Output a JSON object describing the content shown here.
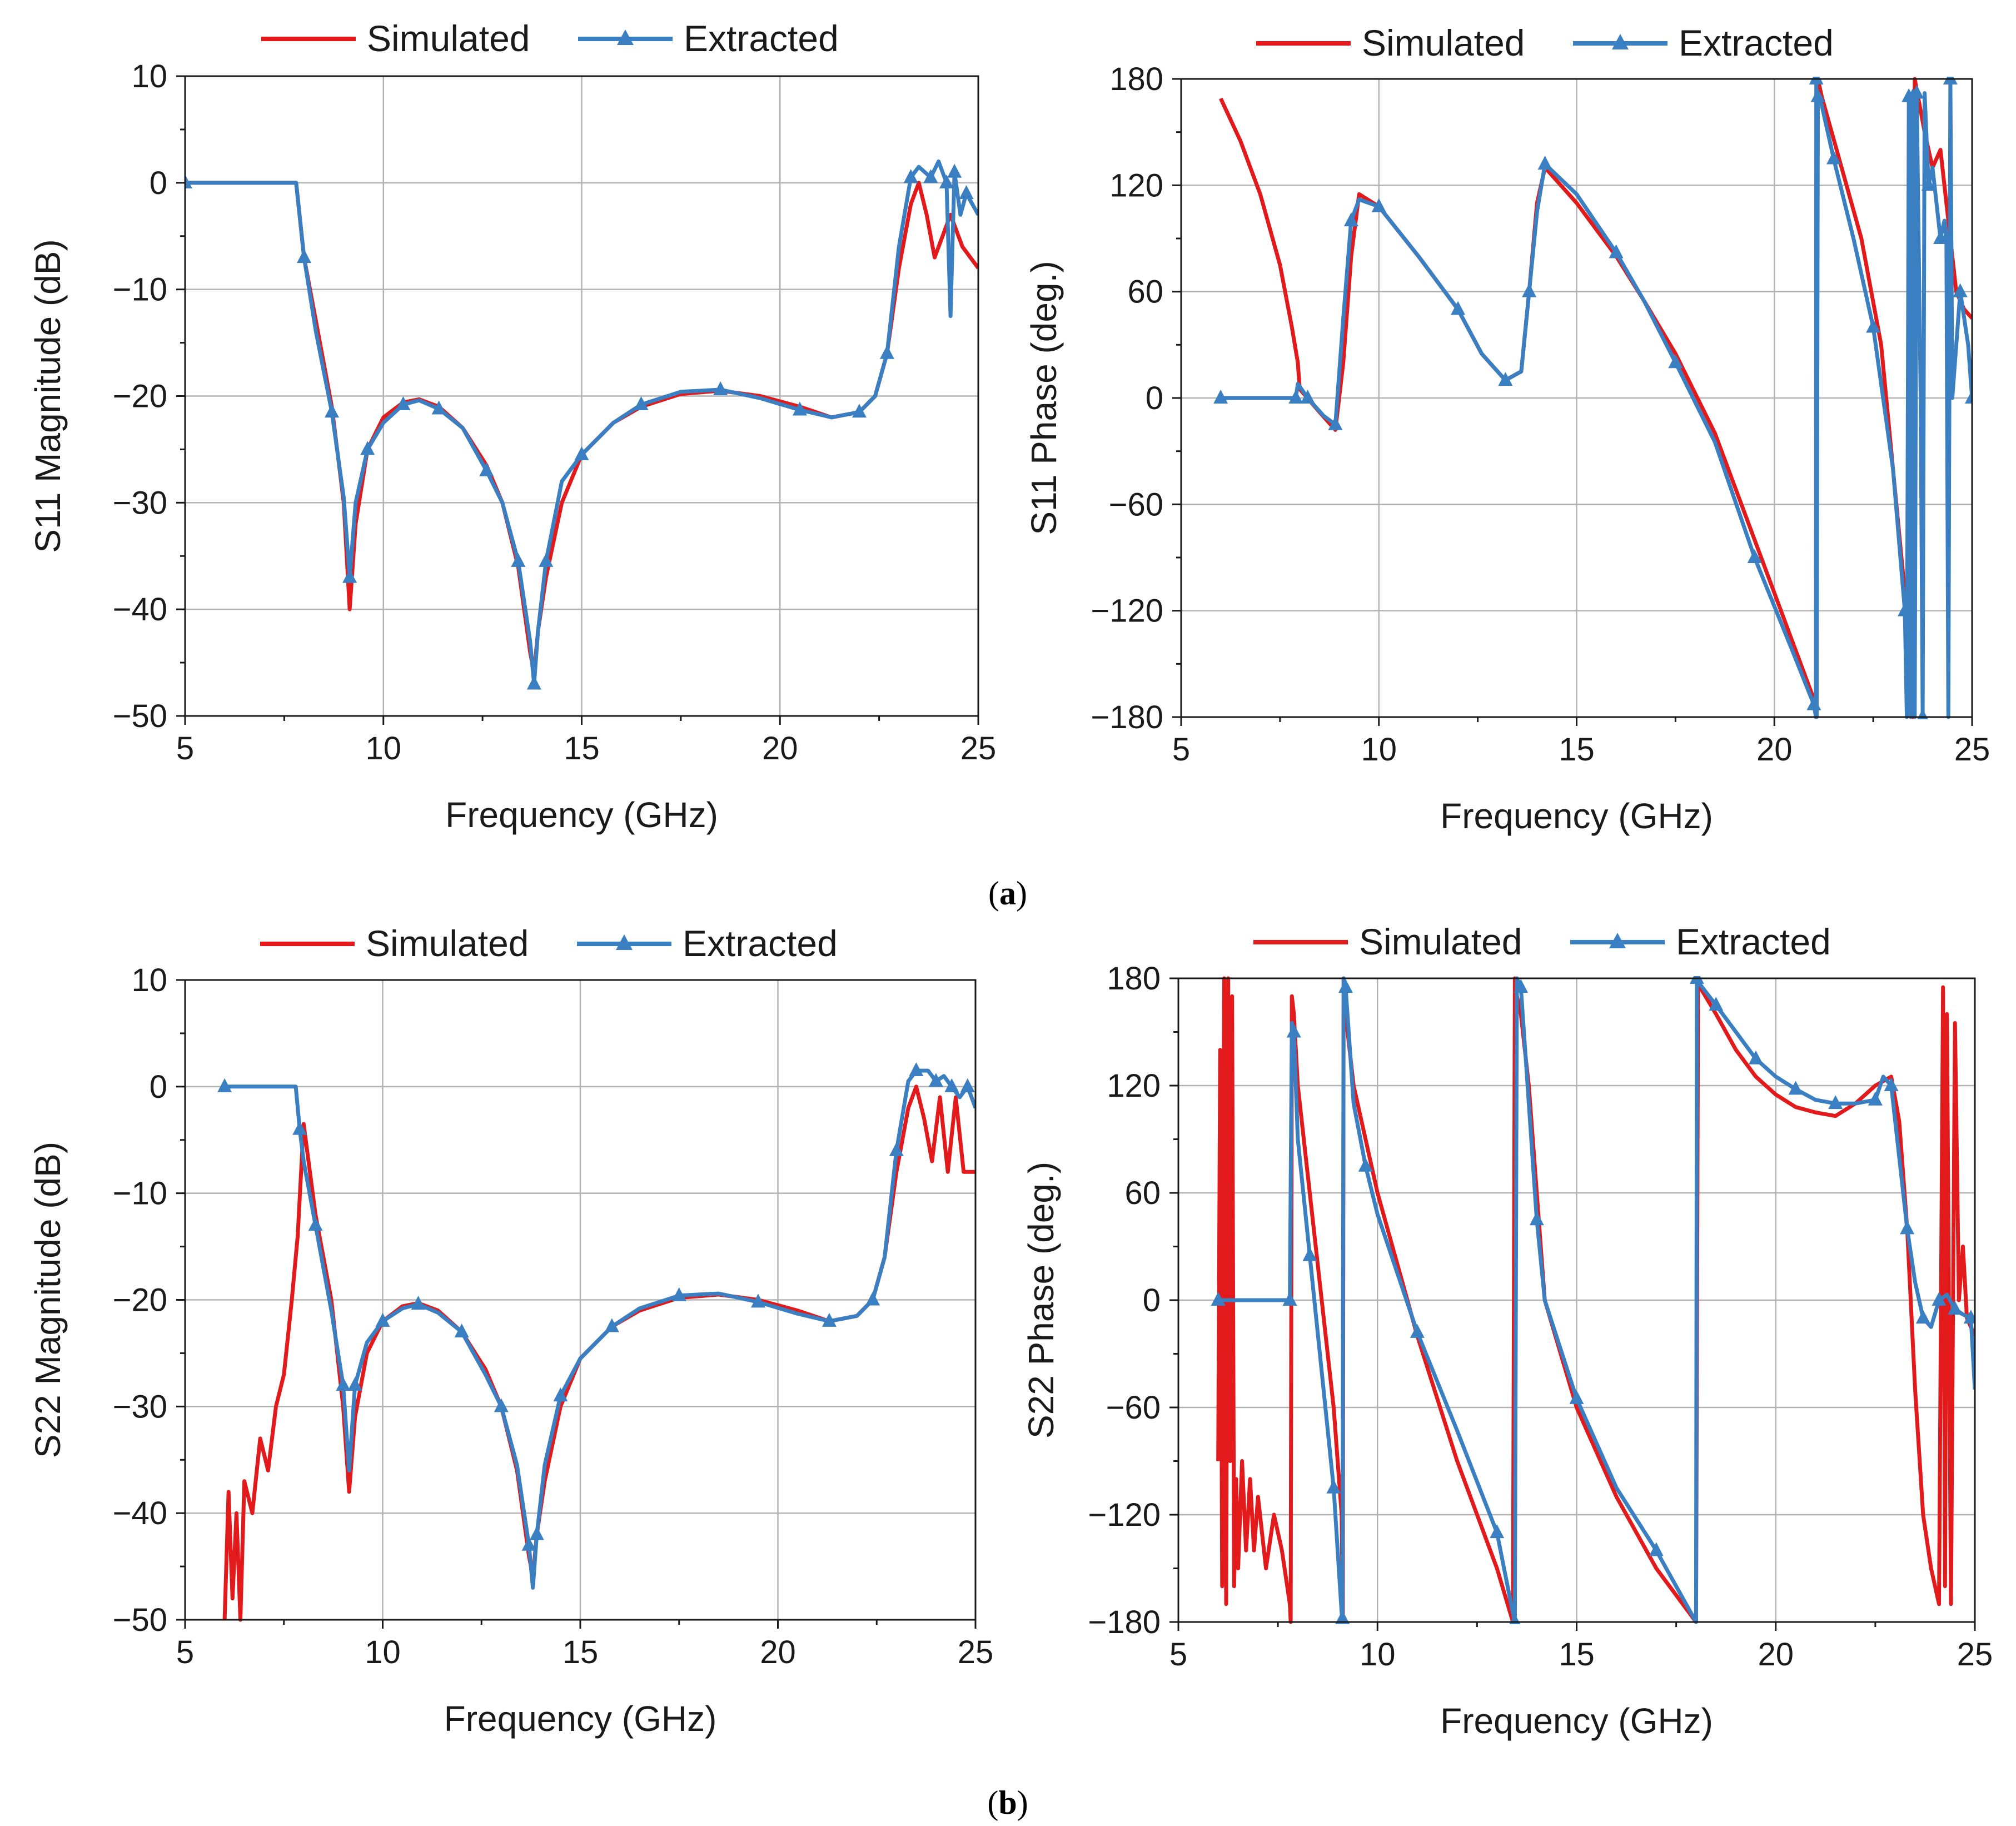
{
  "figure": {
    "caption_a_open": "(",
    "caption_a_letter": "a",
    "caption_a_close": ")",
    "caption_b_open": "(",
    "caption_b_letter": "b",
    "caption_b_close": ")"
  },
  "colors": {
    "simulated": "#e31a1c",
    "extracted": "#3a7fc1"
  },
  "chart_data": [
    {
      "id": "s11mag",
      "type": "line",
      "ylabel": "S11 Magnitude (dB)",
      "xlabel": "Frequency (GHz)",
      "xlim": [
        5,
        25
      ],
      "ylim": [
        -50,
        10
      ],
      "xticks": [
        "5",
        "10",
        "15",
        "20",
        "25"
      ],
      "yticks": [
        "10",
        "0",
        "−10",
        "−20",
        "−30",
        "−40",
        "−50"
      ],
      "grid": true,
      "legend": [
        "Simulated",
        "Extracted"
      ],
      "series": [
        {
          "name": "Simulated",
          "x": [
            5,
            7.8,
            8.0,
            8.3,
            8.7,
            9.0,
            9.15,
            9.3,
            9.6,
            10.0,
            10.5,
            10.9,
            11.4,
            12.0,
            12.6,
            13.0,
            13.4,
            13.7,
            13.8,
            13.9,
            14.1,
            14.5,
            15.0,
            15.8,
            16.5,
            17.5,
            18.5,
            19.5,
            20.5,
            21.3,
            22.0,
            22.4,
            22.7,
            23.0,
            23.3,
            23.5,
            23.7,
            23.9,
            24.1,
            24.3,
            24.6,
            25.0
          ],
          "y": [
            0,
            0,
            -7,
            -13,
            -21,
            -30,
            -40,
            -32,
            -25,
            -22,
            -20.6,
            -20.3,
            -21,
            -23,
            -26.5,
            -30,
            -36,
            -44,
            -46,
            -42,
            -37,
            -30,
            -25.5,
            -22.5,
            -21,
            -19.8,
            -19.5,
            -20,
            -21,
            -22,
            -21.5,
            -20,
            -16,
            -8,
            -2,
            0,
            -3,
            -7,
            -5,
            -3,
            -6,
            -8
          ]
        },
        {
          "name": "Extracted",
          "x": [
            5,
            7.8,
            8.0,
            8.3,
            8.7,
            9.0,
            9.15,
            9.3,
            9.6,
            10.0,
            10.5,
            10.9,
            11.4,
            12.0,
            12.6,
            13.0,
            13.4,
            13.7,
            13.8,
            13.9,
            14.1,
            14.5,
            15.0,
            15.8,
            16.5,
            17.5,
            18.5,
            19.5,
            20.5,
            21.3,
            22.0,
            22.4,
            22.7,
            23.0,
            23.3,
            23.5,
            23.8,
            24.0,
            24.2,
            24.3,
            24.4,
            24.55,
            24.7,
            25.0
          ],
          "y": [
            0,
            0,
            -7,
            -14,
            -21.5,
            -29.5,
            -37,
            -30,
            -25,
            -22.5,
            -20.8,
            -20.4,
            -21.2,
            -23,
            -27,
            -30,
            -35.5,
            -43,
            -47,
            -42,
            -35.5,
            -28,
            -25.5,
            -22.5,
            -20.8,
            -19.6,
            -19.4,
            -20.2,
            -21.3,
            -22,
            -21.5,
            -20,
            -16,
            -6,
            0.5,
            1.5,
            0.5,
            2,
            0,
            -12.5,
            1,
            -3,
            -1,
            -3
          ]
        }
      ]
    },
    {
      "id": "s11phase",
      "type": "line",
      "ylabel": "S11 Phase (deg.)",
      "xlabel": "Frequency (GHz)",
      "xlim": [
        5,
        25
      ],
      "ylim": [
        -180,
        180
      ],
      "xticks": [
        "5",
        "10",
        "15",
        "20",
        "25"
      ],
      "yticks": [
        "180",
        "120",
        "60",
        "0",
        "−60",
        "−120",
        "−180"
      ],
      "grid": true,
      "legend": [
        "Simulated",
        "Extracted"
      ],
      "series": [
        {
          "name": "Simulated",
          "x": [
            6.0,
            6.5,
            7.0,
            7.5,
            7.8,
            7.95,
            8.0,
            8.5,
            8.9,
            9.1,
            9.3,
            9.5,
            10.0,
            11.0,
            12.0,
            12.6,
            13.2,
            13.6,
            13.8,
            14.0,
            14.2,
            15.0,
            16.0,
            16.7,
            17.5,
            18.5,
            19.5,
            20.5,
            21.0,
            21.05,
            21.1,
            21.2,
            21.7,
            22.2,
            22.7,
            23.0,
            23.3,
            23.45,
            23.5,
            23.55,
            23.8,
            24.0,
            24.2,
            24.4,
            24.6,
            24.8,
            25.0
          ],
          "y": [
            169,
            145,
            115,
            75,
            40,
            20,
            5,
            -8,
            -18,
            20,
            80,
            115,
            108,
            80,
            50,
            25,
            10,
            15,
            60,
            110,
            130,
            110,
            80,
            55,
            25,
            -20,
            -80,
            -140,
            -170,
            -180,
            180,
            170,
            130,
            90,
            30,
            -40,
            -110,
            -170,
            -180,
            180,
            150,
            130,
            140,
            100,
            60,
            50,
            45
          ]
        },
        {
          "name": "Extracted",
          "x": [
            6.0,
            7.0,
            7.9,
            7.95,
            8.2,
            8.6,
            8.9,
            9.1,
            9.3,
            9.5,
            10.0,
            11.0,
            12.0,
            12.6,
            13.2,
            13.6,
            13.8,
            14.0,
            14.2,
            15.0,
            16.0,
            16.7,
            17.5,
            18.5,
            19.5,
            20.5,
            21.0,
            21.05,
            21.06,
            21.07,
            21.1,
            21.2,
            21.5,
            22.0,
            22.5,
            23.0,
            23.3,
            23.35,
            23.4,
            23.45,
            23.5,
            23.55,
            23.6,
            23.7,
            23.75,
            23.8,
            23.9,
            24.0,
            24.2,
            24.3,
            24.35,
            24.4,
            24.45,
            24.5,
            24.7,
            24.9,
            25.0
          ],
          "y": [
            0,
            0,
            0,
            8,
            0,
            -10,
            -15,
            45,
            100,
            112,
            108,
            80,
            50,
            25,
            10,
            15,
            60,
            105,
            132,
            115,
            82,
            55,
            20,
            -25,
            -90,
            -145,
            -173,
            -180,
            180,
            -180,
            170,
            165,
            135,
            90,
            40,
            -40,
            -120,
            -180,
            170,
            -180,
            170,
            -180,
            172,
            0,
            -180,
            172,
            120,
            130,
            90,
            100,
            90,
            -180,
            180,
            0,
            60,
            30,
            0
          ]
        }
      ]
    },
    {
      "id": "s22mag",
      "type": "line",
      "ylabel": "S22 Magnitude (dB)",
      "xlabel": "Frequency (GHz)",
      "xlim": [
        5,
        25
      ],
      "ylim": [
        -50,
        10
      ],
      "xticks": [
        "5",
        "10",
        "15",
        "20",
        "25"
      ],
      "yticks": [
        "10",
        "0",
        "−10",
        "−20",
        "−30",
        "−40",
        "−50"
      ],
      "grid": true,
      "legend": [
        "Simulated",
        "Extracted"
      ],
      "series": [
        {
          "name": "Simulated",
          "x": [
            6.0,
            6.1,
            6.2,
            6.3,
            6.4,
            6.5,
            6.7,
            6.9,
            7.1,
            7.3,
            7.5,
            7.7,
            7.85,
            8.0,
            8.3,
            8.7,
            9.0,
            9.15,
            9.3,
            9.6,
            10.0,
            10.5,
            10.9,
            11.4,
            12.0,
            12.6,
            13.0,
            13.4,
            13.7,
            13.8,
            13.9,
            14.1,
            14.5,
            15.0,
            15.8,
            16.5,
            17.5,
            18.5,
            19.5,
            20.5,
            21.3,
            22.0,
            22.4,
            22.7,
            23.0,
            23.3,
            23.5,
            23.7,
            23.9,
            24.1,
            24.3,
            24.5,
            24.7,
            25.0
          ],
          "y": [
            -50,
            -38,
            -48,
            -40,
            -50,
            -37,
            -40,
            -33,
            -36,
            -30,
            -27,
            -20,
            -14,
            -3.5,
            -12,
            -20,
            -30,
            -38,
            -31,
            -25,
            -22,
            -20.6,
            -20.3,
            -21,
            -23,
            -26.5,
            -30,
            -36,
            -44,
            -46,
            -42,
            -37,
            -30,
            -25.5,
            -22.5,
            -21,
            -19.8,
            -19.5,
            -20,
            -21,
            -22,
            -21.5,
            -20,
            -16,
            -8,
            -2,
            0,
            -3,
            -7,
            -1,
            -8,
            -1,
            -8,
            -8
          ]
        },
        {
          "name": "Extracted",
          "x": [
            6.0,
            7.8,
            7.9,
            8.0,
            8.3,
            8.7,
            9.0,
            9.15,
            9.3,
            9.6,
            10.0,
            10.5,
            10.9,
            11.4,
            12.0,
            12.6,
            13.0,
            13.4,
            13.7,
            13.8,
            13.9,
            14.1,
            14.5,
            15.0,
            15.8,
            16.5,
            17.5,
            18.5,
            19.5,
            20.5,
            21.3,
            22.0,
            22.4,
            22.7,
            23.0,
            23.3,
            23.5,
            23.8,
            24.0,
            24.2,
            24.4,
            24.6,
            24.8,
            25.0
          ],
          "y": [
            0,
            0,
            -4,
            -7,
            -13,
            -21,
            -28,
            -36,
            -28,
            -24,
            -22,
            -20.8,
            -20.4,
            -21.2,
            -23,
            -27,
            -30,
            -35.5,
            -43,
            -47,
            -42,
            -35.5,
            -29,
            -25.5,
            -22.5,
            -20.8,
            -19.6,
            -19.4,
            -20.2,
            -21.3,
            -22,
            -21.5,
            -20,
            -16,
            -6,
            0.5,
            1.5,
            1.5,
            0.5,
            1,
            0,
            -1,
            0,
            -2
          ]
        }
      ]
    },
    {
      "id": "s22phase",
      "type": "line",
      "ylabel": "S22 Phase (deg.)",
      "xlabel": "Frequency (GHz)",
      "xlim": [
        5,
        25
      ],
      "ylim": [
        -180,
        180
      ],
      "xticks": [
        "5",
        "10",
        "15",
        "20",
        "25"
      ],
      "yticks": [
        "180",
        "120",
        "60",
        "0",
        "−60",
        "−120",
        "−180"
      ],
      "grid": true,
      "legend": [
        "Simulated",
        "Extracted"
      ],
      "series": [
        {
          "name": "Simulated",
          "x": [
            6.0,
            6.05,
            6.1,
            6.15,
            6.2,
            6.25,
            6.3,
            6.35,
            6.4,
            6.45,
            6.5,
            6.6,
            6.7,
            6.8,
            6.9,
            7.0,
            7.2,
            7.4,
            7.6,
            7.8,
            7.82,
            7.85,
            7.9,
            8.0,
            8.3,
            8.6,
            8.9,
            9.1,
            9.13,
            9.15,
            9.2,
            9.4,
            9.7,
            10.0,
            11.0,
            12.0,
            13.0,
            13.4,
            13.45,
            13.5,
            13.6,
            13.8,
            14.0,
            14.2,
            15.0,
            16.0,
            17.0,
            18.0,
            18.05,
            18.1,
            18.5,
            19.0,
            19.5,
            20.0,
            20.5,
            21.0,
            21.5,
            22.0,
            22.5,
            22.9,
            23.1,
            23.3,
            23.5,
            23.7,
            23.9,
            24.1,
            24.2,
            24.25,
            24.3,
            24.4,
            24.5,
            24.6,
            24.7,
            24.8,
            25.0
          ],
          "y": [
            -90,
            140,
            -160,
            180,
            -170,
            180,
            -90,
            170,
            -160,
            -100,
            -150,
            -90,
            -140,
            -100,
            -140,
            -110,
            -150,
            -120,
            -140,
            -170,
            -180,
            170,
            160,
            120,
            60,
            0,
            -60,
            -120,
            -180,
            180,
            160,
            120,
            90,
            60,
            -20,
            -90,
            -150,
            -180,
            180,
            170,
            160,
            120,
            60,
            0,
            -60,
            -110,
            -150,
            -180,
            180,
            175,
            160,
            140,
            125,
            115,
            108,
            105,
            103,
            110,
            120,
            125,
            100,
            40,
            -50,
            -120,
            -150,
            -170,
            175,
            -160,
            160,
            -170,
            155,
            0,
            30,
            -10,
            -20
          ]
        },
        {
          "name": "Extracted",
          "x": [
            6.0,
            6.1,
            7.8,
            7.85,
            7.9,
            8.0,
            8.3,
            8.6,
            8.9,
            9.1,
            9.12,
            9.15,
            9.2,
            9.4,
            9.7,
            10.0,
            11.0,
            12.0,
            13.0,
            13.4,
            13.45,
            13.5,
            13.6,
            13.8,
            14.0,
            14.2,
            15.0,
            16.0,
            17.0,
            18.0,
            18.02,
            18.05,
            18.5,
            19.0,
            19.5,
            20.0,
            20.5,
            21.0,
            21.5,
            22.0,
            22.5,
            22.7,
            22.9,
            23.1,
            23.3,
            23.5,
            23.7,
            23.9,
            24.1,
            24.3,
            24.5,
            24.7,
            24.9,
            25.0
          ],
          "y": [
            0,
            0,
            0,
            155,
            150,
            90,
            25,
            -40,
            -105,
            -175,
            -178,
            180,
            175,
            110,
            75,
            48,
            -18,
            -73,
            -130,
            -175,
            -180,
            180,
            175,
            110,
            45,
            0,
            -55,
            -105,
            -140,
            -180,
            180,
            178,
            165,
            150,
            135,
            125,
            118,
            112,
            110,
            110,
            112,
            125,
            120,
            80,
            40,
            10,
            -10,
            -15,
            0,
            3,
            -5,
            -8,
            -10,
            -50
          ]
        }
      ]
    }
  ]
}
